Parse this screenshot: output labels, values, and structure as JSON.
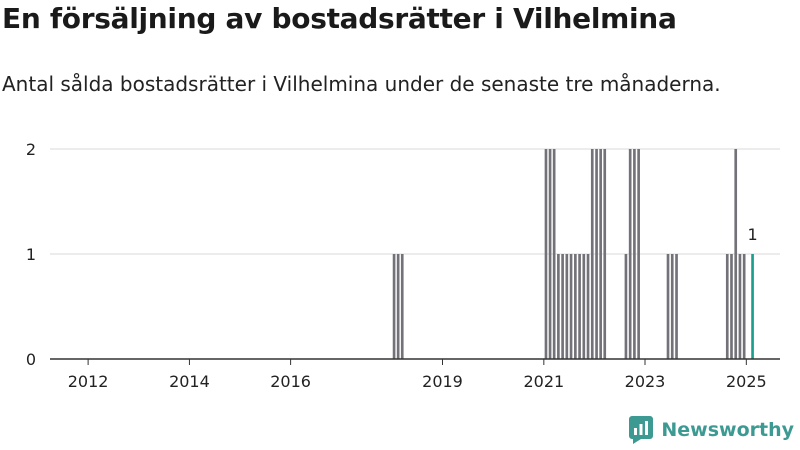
{
  "header": {
    "title": "En försäljning av bostadsrätter i Vilhelmina",
    "subtitle": "Antal sålda bostadsrätter i Vilhelmina under de senaste tre månaderna."
  },
  "brand": {
    "name": "Newsworthy"
  },
  "colors": {
    "bar": "#737278",
    "highlight": "#1a9f8f",
    "grid": "#d9d9d9",
    "axis": "#333333"
  },
  "chart_data": {
    "type": "bar",
    "x_type": "date",
    "xlim": [
      "2011-04-01",
      "2025-09-01"
    ],
    "ylim": [
      0,
      2
    ],
    "yticks": [
      0,
      1,
      2
    ],
    "xticks": [
      {
        "date": "2012-01-01",
        "label": "2012"
      },
      {
        "date": "2014-01-01",
        "label": "2014"
      },
      {
        "date": "2016-01-01",
        "label": "2016"
      },
      {
        "date": "2019-01-01",
        "label": "2019"
      },
      {
        "date": "2021-01-01",
        "label": "2021"
      },
      {
        "date": "2023-01-01",
        "label": "2023"
      },
      {
        "date": "2025-01-01",
        "label": "2025"
      }
    ],
    "grid": true,
    "series": [
      {
        "points": [
          {
            "x": "2018-01",
            "y": 1
          },
          {
            "x": "2018-02",
            "y": 1
          },
          {
            "x": "2018-03",
            "y": 1
          },
          {
            "x": "2021-01",
            "y": 2
          },
          {
            "x": "2021-02",
            "y": 2
          },
          {
            "x": "2021-03",
            "y": 2
          },
          {
            "x": "2021-04",
            "y": 1
          },
          {
            "x": "2021-05",
            "y": 1
          },
          {
            "x": "2021-06",
            "y": 1
          },
          {
            "x": "2021-07",
            "y": 1
          },
          {
            "x": "2021-08",
            "y": 1
          },
          {
            "x": "2021-09",
            "y": 1
          },
          {
            "x": "2021-10",
            "y": 1
          },
          {
            "x": "2021-11",
            "y": 1
          },
          {
            "x": "2021-12",
            "y": 2
          },
          {
            "x": "2022-01",
            "y": 2
          },
          {
            "x": "2022-02",
            "y": 2
          },
          {
            "x": "2022-03",
            "y": 2
          },
          {
            "x": "2022-08",
            "y": 1
          },
          {
            "x": "2022-09",
            "y": 2
          },
          {
            "x": "2022-10",
            "y": 2
          },
          {
            "x": "2022-11",
            "y": 2
          },
          {
            "x": "2023-06",
            "y": 1
          },
          {
            "x": "2023-07",
            "y": 1
          },
          {
            "x": "2023-08",
            "y": 1
          },
          {
            "x": "2024-08",
            "y": 1
          },
          {
            "x": "2024-09",
            "y": 1
          },
          {
            "x": "2024-10",
            "y": 2
          },
          {
            "x": "2024-11",
            "y": 1
          },
          {
            "x": "2024-12",
            "y": 1
          },
          {
            "x": "2025-02",
            "y": 1,
            "highlight": true,
            "label": "1"
          }
        ]
      }
    ]
  }
}
